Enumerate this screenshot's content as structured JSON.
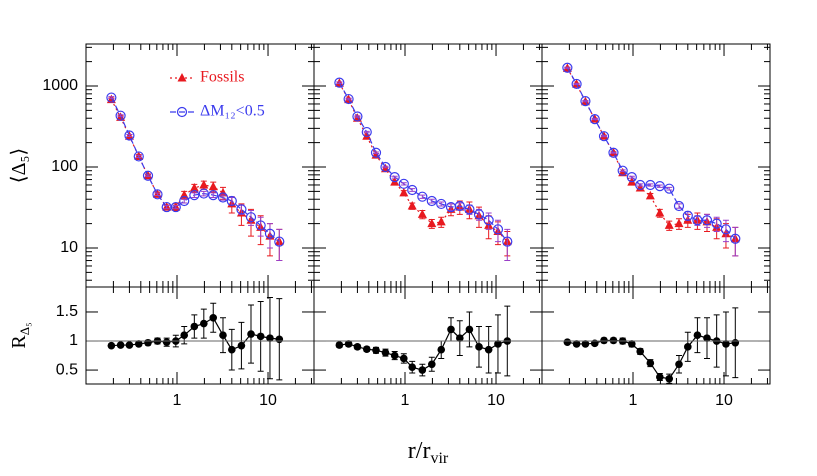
{
  "chart_data": [
    {
      "type": "scatter",
      "xscale": "log",
      "yscale": "log",
      "xlim": [
        0.1,
        32
      ],
      "ylim": [
        3.3,
        3300
      ],
      "xticks": [
        1,
        10
      ],
      "xminorticks": [
        0.2,
        0.3,
        0.4,
        0.5,
        0.6,
        0.7,
        0.8,
        0.9,
        2,
        3,
        4,
        5,
        6,
        7,
        8,
        9,
        20,
        30
      ],
      "yticks": [
        10,
        100,
        1000
      ],
      "yminorticks": [
        4,
        5,
        6,
        7,
        8,
        9,
        20,
        30,
        40,
        50,
        60,
        70,
        80,
        90,
        200,
        300,
        400,
        500,
        600,
        700,
        800,
        900,
        2000,
        3000
      ],
      "xticklabels": false,
      "yticklabels": true,
      "ylabel": "⟨Δ₅⟩",
      "legend": true,
      "x": [
        0.19,
        0.24,
        0.3,
        0.38,
        0.48,
        0.61,
        0.77,
        0.97,
        1.2,
        1.55,
        1.97,
        2.5,
        3.2,
        4.0,
        5.1,
        6.5,
        8.3,
        10.5,
        13.3
      ],
      "series": [
        {
          "name": "Fossils",
          "color": "#e8191f",
          "marker": "triangle",
          "dash": "2,3",
          "values": [
            680,
            410,
            240,
            135,
            78,
            46,
            32,
            32,
            45,
            55,
            60,
            57,
            48,
            35,
            27,
            22,
            18,
            14,
            12
          ],
          "errors": [
            30,
            20,
            12,
            7,
            4,
            3,
            2,
            3,
            5,
            6,
            7,
            8,
            8,
            8,
            8,
            8,
            7,
            6,
            5
          ]
        },
        {
          "name": "ΔM₁₂<0.5",
          "color": "#3b3bee",
          "errcolor": "#9a3fc8",
          "marker": "circle",
          "dash": "6,3",
          "values": [
            720,
            430,
            245,
            135,
            78,
            46,
            32,
            32,
            38,
            45,
            47,
            45,
            42,
            38,
            30,
            24,
            19,
            15,
            12
          ],
          "errors": [
            20,
            12,
            7,
            4,
            2,
            1.5,
            1.5,
            1.5,
            2,
            3,
            3,
            3,
            3,
            4,
            4,
            5,
            5,
            5,
            5
          ]
        }
      ]
    },
    {
      "type": "scatter",
      "xscale": "log",
      "yscale": "log",
      "xlim": [
        0.1,
        32
      ],
      "ylim": [
        3.3,
        3300
      ],
      "xticks": [
        1,
        10
      ],
      "xminorticks": [
        0.2,
        0.3,
        0.4,
        0.5,
        0.6,
        0.7,
        0.8,
        0.9,
        2,
        3,
        4,
        5,
        6,
        7,
        8,
        9,
        20,
        30
      ],
      "yticks": [
        10,
        100,
        1000
      ],
      "yminorticks": [
        4,
        5,
        6,
        7,
        8,
        9,
        20,
        30,
        40,
        50,
        60,
        70,
        80,
        90,
        200,
        300,
        400,
        500,
        600,
        700,
        800,
        900,
        2000,
        3000
      ],
      "xticklabels": false,
      "yticklabels": false,
      "x": [
        0.19,
        0.24,
        0.3,
        0.38,
        0.48,
        0.61,
        0.77,
        0.97,
        1.2,
        1.55,
        1.97,
        2.5,
        3.2,
        4.0,
        5.1,
        6.5,
        8.3,
        10.5,
        13.3
      ],
      "series": [
        {
          "color": "#e8191f",
          "marker": "triangle",
          "dash": "2,3",
          "values": [
            1080,
            680,
            400,
            240,
            140,
            95,
            65,
            48,
            33,
            26,
            20,
            21,
            30,
            32,
            30,
            25,
            19,
            16,
            12
          ],
          "errors": [
            40,
            25,
            15,
            9,
            6,
            4,
            3,
            3,
            3,
            3,
            2.5,
            3,
            5,
            6,
            7,
            7,
            6,
            5,
            4
          ]
        },
        {
          "color": "#3b3bee",
          "errcolor": "#9a3fc8",
          "marker": "circle",
          "dash": "6,3",
          "values": [
            1100,
            690,
            420,
            270,
            150,
            100,
            75,
            62,
            52,
            43,
            38,
            35,
            32,
            33,
            30,
            26,
            22,
            17,
            12
          ],
          "errors": [
            25,
            15,
            8,
            5,
            3,
            2,
            2,
            2,
            2,
            2,
            2,
            2,
            3,
            3,
            4,
            4,
            5,
            5,
            5
          ]
        }
      ]
    },
    {
      "type": "scatter",
      "xscale": "log",
      "yscale": "log",
      "xlim": [
        0.1,
        32
      ],
      "ylim": [
        3.3,
        3300
      ],
      "xticks": [
        1,
        10
      ],
      "xminorticks": [
        0.2,
        0.3,
        0.4,
        0.5,
        0.6,
        0.7,
        0.8,
        0.9,
        2,
        3,
        4,
        5,
        6,
        7,
        8,
        9,
        20,
        30
      ],
      "yticks": [
        10,
        100,
        1000
      ],
      "yminorticks": [
        4,
        5,
        6,
        7,
        8,
        9,
        20,
        30,
        40,
        50,
        60,
        70,
        80,
        90,
        200,
        300,
        400,
        500,
        600,
        700,
        800,
        900,
        2000,
        3000
      ],
      "xticklabels": false,
      "yticklabels": false,
      "x": [
        0.19,
        0.24,
        0.3,
        0.38,
        0.48,
        0.61,
        0.77,
        0.97,
        1.2,
        1.55,
        1.97,
        2.5,
        3.2,
        4.0,
        5.1,
        6.5,
        8.3,
        10.5,
        13.3
      ],
      "series": [
        {
          "color": "#e8191f",
          "marker": "triangle",
          "dash": "2,3",
          "values": [
            1650,
            1050,
            640,
            390,
            240,
            150,
            85,
            65,
            55,
            44,
            27,
            19,
            20,
            22,
            22,
            21,
            18,
            15,
            13
          ],
          "errors": [
            50,
            30,
            18,
            10,
            7,
            4,
            3,
            3,
            3,
            3,
            3,
            2.5,
            3,
            4,
            5,
            5,
            5,
            5,
            5
          ]
        },
        {
          "color": "#3b3bee",
          "errcolor": "#9a3fc8",
          "marker": "circle",
          "dash": "6,3",
          "values": [
            1680,
            1060,
            650,
            390,
            240,
            150,
            90,
            75,
            60,
            60,
            58,
            54,
            33,
            25,
            22,
            22,
            20,
            17,
            13
          ],
          "errors": [
            30,
            18,
            10,
            6,
            4,
            2,
            2,
            2,
            2,
            2,
            2,
            2,
            2,
            3,
            3,
            4,
            4,
            5,
            5
          ]
        }
      ]
    },
    {
      "type": "line",
      "xscale": "log",
      "xlim": [
        0.1,
        32
      ],
      "ylim": [
        0.26,
        1.93
      ],
      "hline": 1,
      "xticks": [
        1,
        10
      ],
      "xminorticks": [
        0.2,
        0.3,
        0.4,
        0.5,
        0.6,
        0.7,
        0.8,
        0.9,
        2,
        3,
        4,
        5,
        6,
        7,
        8,
        9,
        20,
        30
      ],
      "yticks": [
        0.5,
        1,
        1.5
      ],
      "xticklabels": true,
      "yticklabels": true,
      "ylabel": "R",
      "ylabel_sub": "Δ₅",
      "x": [
        0.19,
        0.24,
        0.3,
        0.38,
        0.48,
        0.61,
        0.77,
        0.97,
        1.2,
        1.55,
        1.97,
        2.5,
        3.2,
        4.0,
        5.1,
        6.5,
        8.3,
        10.5,
        13.3
      ],
      "series": [
        {
          "color": "#000000",
          "marker": "dot",
          "values": [
            0.92,
            0.93,
            0.93,
            0.95,
            0.97,
            1.0,
            0.98,
            1.0,
            1.1,
            1.25,
            1.3,
            1.4,
            1.1,
            0.85,
            0.92,
            1.12,
            1.08,
            1.05,
            1.03
          ],
          "errors": [
            0.03,
            0.03,
            0.03,
            0.03,
            0.04,
            0.05,
            0.07,
            0.1,
            0.15,
            0.2,
            0.25,
            0.25,
            0.3,
            0.35,
            0.4,
            0.5,
            0.6,
            0.7,
            0.7
          ]
        }
      ]
    },
    {
      "type": "line",
      "xscale": "log",
      "xlim": [
        0.1,
        32
      ],
      "ylim": [
        0.26,
        1.93
      ],
      "hline": 1,
      "xticks": [
        1,
        10
      ],
      "xminorticks": [
        0.2,
        0.3,
        0.4,
        0.5,
        0.6,
        0.7,
        0.8,
        0.9,
        2,
        3,
        4,
        5,
        6,
        7,
        8,
        9,
        20,
        30
      ],
      "yticks": [
        0.5,
        1,
        1.5
      ],
      "xticklabels": true,
      "yticklabels": false,
      "xlabel": "r/r",
      "xlabel_sub": "vir",
      "x": [
        0.19,
        0.24,
        0.3,
        0.38,
        0.48,
        0.61,
        0.77,
        0.97,
        1.2,
        1.55,
        1.97,
        2.5,
        3.2,
        4.0,
        5.1,
        6.5,
        8.3,
        10.5,
        13.3
      ],
      "series": [
        {
          "color": "#000000",
          "marker": "dot",
          "values": [
            0.93,
            0.95,
            0.9,
            0.86,
            0.84,
            0.8,
            0.75,
            0.7,
            0.55,
            0.5,
            0.6,
            0.85,
            1.2,
            1.05,
            1.2,
            0.9,
            0.85,
            0.95,
            1.0
          ],
          "errors": [
            0.04,
            0.04,
            0.04,
            0.04,
            0.05,
            0.06,
            0.07,
            0.08,
            0.1,
            0.1,
            0.12,
            0.15,
            0.2,
            0.3,
            0.3,
            0.35,
            0.4,
            0.5,
            0.6
          ]
        }
      ]
    },
    {
      "type": "line",
      "xscale": "log",
      "xlim": [
        0.1,
        32
      ],
      "ylim": [
        0.26,
        1.93
      ],
      "hline": 1,
      "xticks": [
        1,
        10
      ],
      "xminorticks": [
        0.2,
        0.3,
        0.4,
        0.5,
        0.6,
        0.7,
        0.8,
        0.9,
        2,
        3,
        4,
        5,
        6,
        7,
        8,
        9,
        20,
        30
      ],
      "yticks": [
        0.5,
        1,
        1.5
      ],
      "xticklabels": true,
      "yticklabels": false,
      "x": [
        0.19,
        0.24,
        0.3,
        0.38,
        0.48,
        0.61,
        0.77,
        0.97,
        1.2,
        1.55,
        1.97,
        2.5,
        3.2,
        4.0,
        5.1,
        6.5,
        8.3,
        10.5,
        13.3
      ],
      "series": [
        {
          "color": "#000000",
          "marker": "dot",
          "values": [
            0.98,
            0.95,
            0.95,
            0.96,
            1.01,
            1.01,
            1.0,
            0.95,
            0.82,
            0.62,
            0.38,
            0.35,
            0.6,
            0.9,
            1.1,
            1.05,
            1.0,
            0.95,
            0.97
          ],
          "errors": [
            0.03,
            0.03,
            0.03,
            0.03,
            0.04,
            0.04,
            0.05,
            0.05,
            0.05,
            0.06,
            0.06,
            0.08,
            0.15,
            0.25,
            0.3,
            0.35,
            0.45,
            0.55,
            0.6
          ]
        }
      ]
    }
  ]
}
